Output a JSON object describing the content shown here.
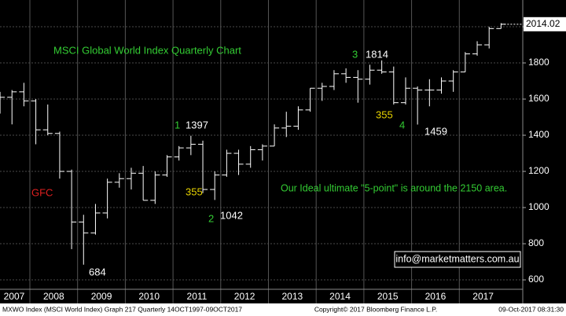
{
  "chart_data": {
    "type": "ohlc",
    "title": "MSCI Global World Index Quarterly Chart",
    "x": [
      2007.375,
      2007.625,
      2007.875,
      2008.125,
      2008.375,
      2008.625,
      2008.875,
      2009.125,
      2009.375,
      2009.625,
      2009.875,
      2010.125,
      2010.375,
      2010.625,
      2010.875,
      2011.125,
      2011.375,
      2011.625,
      2011.875,
      2012.125,
      2012.375,
      2012.625,
      2012.875,
      2013.125,
      2013.375,
      2013.625,
      2013.875,
      2014.125,
      2014.375,
      2014.625,
      2014.875,
      2015.125,
      2015.375,
      2015.625,
      2015.875,
      2016.125,
      2016.375,
      2016.625,
      2016.875,
      2017.125,
      2017.375,
      2017.625,
      2017.875
    ],
    "open": [
      1550,
      1610,
      1640,
      1590,
      1430,
      1410,
      1200,
      920,
      860,
      970,
      1140,
      1160,
      1190,
      1040,
      1180,
      1280,
      1330,
      1350,
      1100,
      1180,
      1300,
      1240,
      1320,
      1340,
      1440,
      1450,
      1540,
      1660,
      1670,
      1740,
      1720,
      1710,
      1760,
      1750,
      1580,
      1660,
      1650,
      1650,
      1700,
      1750,
      1850,
      1900,
      1990
    ],
    "high": [
      1640,
      1650,
      1690,
      1600,
      1570,
      1420,
      1210,
      960,
      1020,
      1160,
      1190,
      1220,
      1230,
      1200,
      1290,
      1340,
      1397,
      1370,
      1200,
      1320,
      1320,
      1340,
      1350,
      1460,
      1530,
      1560,
      1660,
      1690,
      1760,
      1770,
      1760,
      1790,
      1814,
      1780,
      1720,
      1670,
      1710,
      1720,
      1760,
      1860,
      1920,
      2000,
      2020
    ],
    "low": [
      1520,
      1460,
      1560,
      1350,
      1400,
      1160,
      770,
      684,
      850,
      940,
      1110,
      1100,
      1040,
      1020,
      1170,
      1260,
      1290,
      1080,
      1042,
      1170,
      1180,
      1220,
      1260,
      1340,
      1390,
      1430,
      1530,
      1590,
      1650,
      1690,
      1580,
      1680,
      1740,
      1570,
      1570,
      1459,
      1560,
      1630,
      1640,
      1750,
      1840,
      1880,
      1990
    ],
    "close": [
      1610,
      1640,
      1590,
      1430,
      1410,
      1200,
      920,
      860,
      970,
      1140,
      1160,
      1190,
      1040,
      1180,
      1280,
      1330,
      1350,
      1100,
      1180,
      1300,
      1240,
      1320,
      1340,
      1440,
      1450,
      1540,
      1660,
      1670,
      1740,
      1720,
      1710,
      1760,
      1750,
      1580,
      1660,
      1650,
      1650,
      1700,
      1750,
      1850,
      1900,
      1990,
      2014.02
    ],
    "color": "#ffffff",
    "xlim": [
      2007.374,
      2018.33
    ],
    "xticks": [
      2007,
      2008,
      2009,
      2010,
      2011,
      2012,
      2013,
      2014,
      2015,
      2016,
      2017
    ],
    "ylim": [
      548,
      2148
    ],
    "yticks": [
      600,
      800,
      1000,
      1200,
      1400,
      1600,
      1800,
      2000
    ],
    "grid": true,
    "annotations": [
      {
        "text": "1",
        "color": "#33cc33"
      },
      {
        "text": "355",
        "color": "#e6d200"
      },
      {
        "text": "2",
        "color": "#33cc33"
      },
      {
        "text": "3",
        "color": "#33cc33"
      },
      {
        "text": "355",
        "color": "#e6d200"
      },
      {
        "text": "4",
        "color": "#33cc33"
      },
      {
        "text": "GFC",
        "color": "#e02020"
      },
      {
        "text": "Our Ideal ultimate \"5-point\" is around the 2150 area.",
        "color": "#33cc33"
      }
    ],
    "contact": "info@marketmatters.com.au",
    "footer": {
      "left": "MXWO Index (MSCI World Index) Graph 217  Quarterly 14OCT1997-09OCT2017",
      "center": "Copyright© 2017 Bloomberg Finance L.P.",
      "right": "09-Oct-2017 08:31:30"
    }
  }
}
